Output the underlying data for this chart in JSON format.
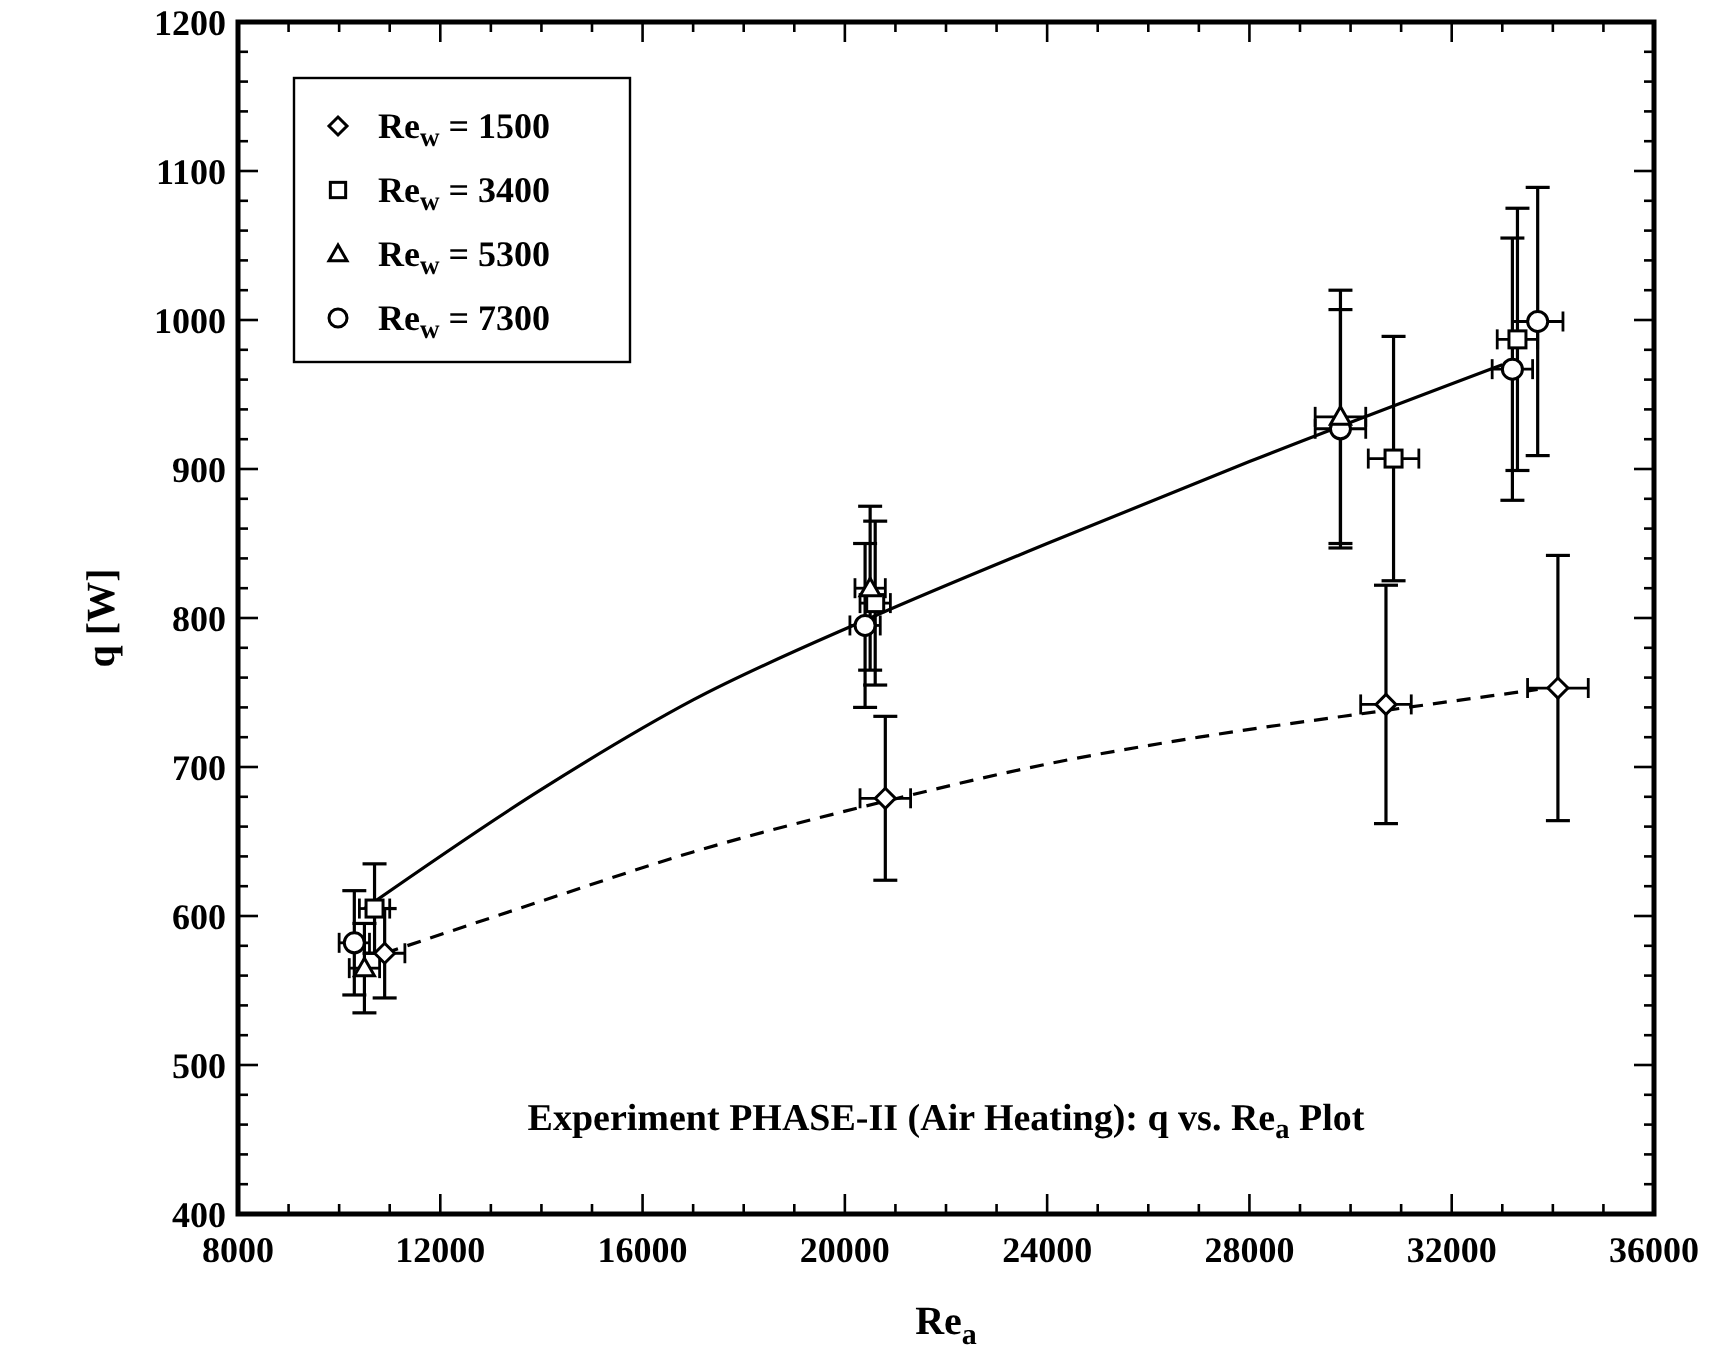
{
  "chart_data": {
    "type": "scatter",
    "title": "Experiment PHASE-II (Air Heating): q vs. Re$_{a}$ Plot",
    "xlabel": "Re$_{a}$",
    "ylabel": "q [W]",
    "xlim": [
      8000,
      36000
    ],
    "xticks": [
      8000,
      {
        "value": 9000,
        "label": null
      },
      {
        "value": 10000,
        "label": null
      },
      {
        "value": 11000,
        "label": null
      },
      12000,
      {
        "value": 13000,
        "label": null
      },
      {
        "value": 14000,
        "label": null
      },
      {
        "value": 15000,
        "label": null
      },
      16000,
      {
        "value": 17000,
        "label": null
      },
      {
        "value": 18000,
        "label": null
      },
      {
        "value": 19000,
        "label": null
      },
      20000,
      {
        "value": 21000,
        "label": null
      },
      {
        "value": 22000,
        "label": null
      },
      {
        "value": 23000,
        "label": null
      },
      24000,
      {
        "value": 25000,
        "label": null
      },
      {
        "value": 26000,
        "label": null
      },
      {
        "value": 27000,
        "label": null
      },
      28000,
      {
        "value": 29000,
        "label": null
      },
      {
        "value": 30000,
        "label": null
      },
      {
        "value": 31000,
        "label": null
      },
      32000,
      {
        "value": 33000,
        "label": null
      },
      {
        "value": 34000,
        "label": null
      },
      {
        "value": 35000,
        "label": null
      },
      36000
    ],
    "ylim": [
      400,
      1200
    ],
    "yticks": [
      400,
      {
        "value": 420,
        "label": null
      },
      {
        "value": 440,
        "label": null
      },
      {
        "value": 460,
        "label": null
      },
      {
        "value": 480,
        "label": null
      },
      500,
      {
        "value": 520,
        "label": null
      },
      {
        "value": 540,
        "label": null
      },
      {
        "value": 560,
        "label": null
      },
      {
        "value": 580,
        "label": null
      },
      600,
      {
        "value": 620,
        "label": null
      },
      {
        "value": 640,
        "label": null
      },
      {
        "value": 660,
        "label": null
      },
      {
        "value": 680,
        "label": null
      },
      700,
      {
        "value": 720,
        "label": null
      },
      {
        "value": 740,
        "label": null
      },
      {
        "value": 760,
        "label": null
      },
      {
        "value": 780,
        "label": null
      },
      800,
      {
        "value": 820,
        "label": null
      },
      {
        "value": 840,
        "label": null
      },
      {
        "value": 860,
        "label": null
      },
      {
        "value": 880,
        "label": null
      },
      900,
      {
        "value": 920,
        "label": null
      },
      {
        "value": 940,
        "label": null
      },
      {
        "value": 960,
        "label": null
      },
      {
        "value": 980,
        "label": null
      },
      1000,
      {
        "value": 1020,
        "label": null
      },
      {
        "value": 1040,
        "label": null
      },
      {
        "value": 1060,
        "label": null
      },
      {
        "value": 1080,
        "label": null
      },
      1100,
      {
        "value": 1120,
        "label": null
      },
      {
        "value": 1140,
        "label": null
      },
      {
        "value": 1160,
        "label": null
      },
      {
        "value": 1180,
        "label": null
      },
      1200
    ],
    "grid": false,
    "legend": "top left",
    "series": [
      {
        "type": "line",
        "color": "#000000",
        "line_style": "solid",
        "marker": "none",
        "x": [
          10500,
          14000,
          17000,
          20500,
          24000,
          28000,
          33000
        ],
        "values": [
          605,
          685,
          745,
          800,
          850,
          905,
          970
        ]
      },
      {
        "type": "line",
        "color": "#000000",
        "line_style": "dashed",
        "marker": "none",
        "x": [
          10900,
          14000,
          17000,
          20800,
          24000,
          27000,
          30700,
          33700
        ],
        "values": [
          575,
          610,
          643,
          677,
          702,
          720,
          738,
          752
        ]
      },
      {
        "name": "Re$_{w}$ = 1500",
        "color": "#000000",
        "marker": "diamond",
        "x": [
          10900,
          20800,
          30700,
          34100
        ],
        "values": [
          575,
          679,
          742,
          753
        ],
        "errors": [
          30,
          55,
          80,
          89
        ],
        "xerrors": [
          400,
          500,
          500,
          600
        ]
      },
      {
        "name": "Re$_{w}$ = 3400",
        "color": "#000000",
        "marker": "square",
        "x": [
          10700,
          20600,
          30850,
          33300
        ],
        "values": [
          605,
          810,
          907,
          987
        ],
        "errors": [
          30,
          55,
          82,
          88
        ],
        "xerrors": [
          300,
          300,
          500,
          400
        ]
      },
      {
        "name": "Re$_{w}$ = 5300",
        "color": "#000000",
        "marker": "triangle",
        "x": [
          10500,
          20500,
          29800
        ],
        "values": [
          565,
          820,
          935
        ],
        "errors": [
          30,
          55,
          85
        ],
        "xerrors": [
          300,
          300,
          500
        ]
      },
      {
        "name": "Re$_{w}$ = 7300",
        "color": "#000000",
        "marker": "circle",
        "x": [
          10300,
          20400,
          29800,
          33200,
          33700
        ],
        "values": [
          582,
          795,
          927,
          967,
          999
        ],
        "errors": [
          35,
          55,
          80,
          88,
          90
        ],
        "xerrors": [
          300,
          300,
          500,
          400,
          500
        ]
      }
    ]
  }
}
